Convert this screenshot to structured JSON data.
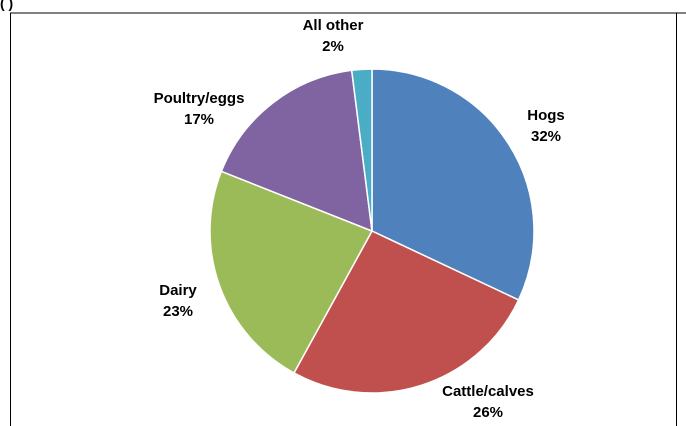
{
  "header": {
    "partial_caption": "(                        )"
  },
  "chart_data": {
    "type": "pie",
    "title": "",
    "slices": [
      {
        "label": "Hogs",
        "percent_label": "32%",
        "value": 32,
        "color": "#4f81bd"
      },
      {
        "label": "Cattle/calves",
        "percent_label": "26%",
        "value": 26,
        "color": "#c0504d"
      },
      {
        "label": "Dairy",
        "percent_label": "23%",
        "value": 23,
        "color": "#9bbb59"
      },
      {
        "label": "Poultry/eggs",
        "percent_label": "17%",
        "value": 17,
        "color": "#8064a2"
      },
      {
        "label": "All other",
        "percent_label": "2%",
        "value": 2,
        "color": "#4bacc6"
      }
    ],
    "start_angle_deg": 0,
    "direction": "clockwise",
    "legend": "none",
    "slice_border_color": "#ffffff",
    "frame_color": "#000000"
  }
}
